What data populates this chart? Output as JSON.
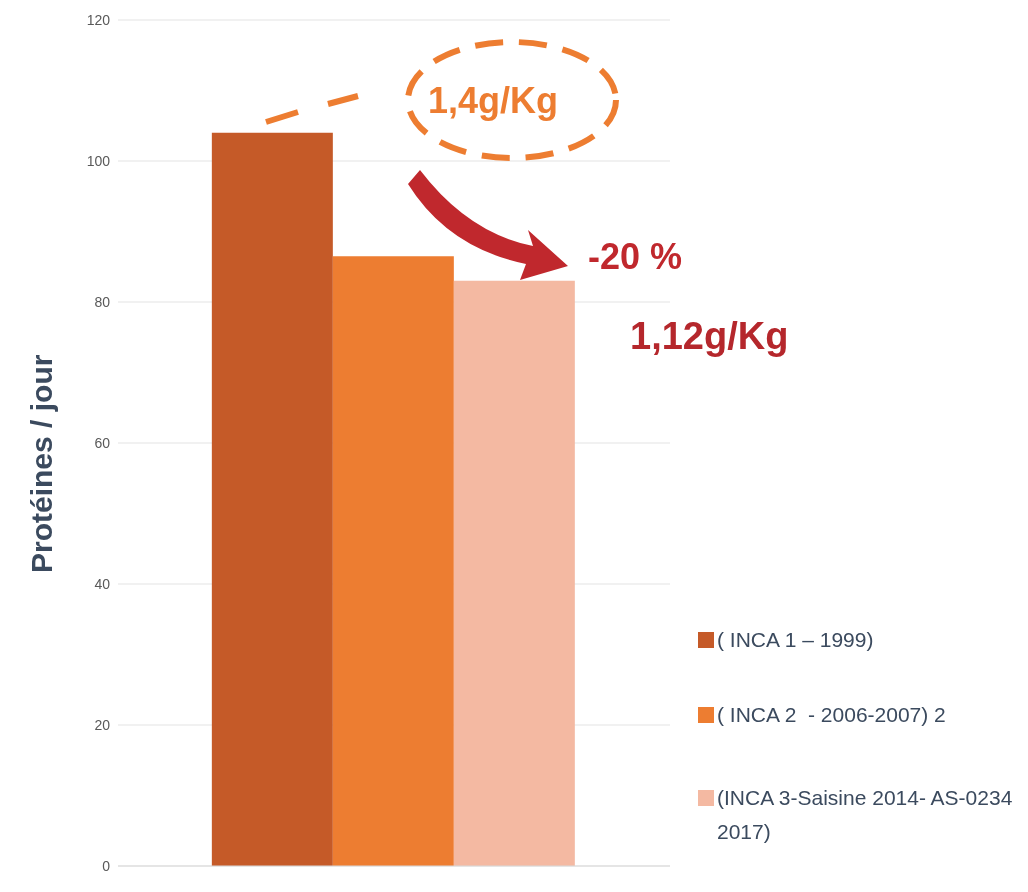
{
  "chart_data": {
    "type": "bar",
    "ylabel": "Protéines / jour",
    "categories": [
      null
    ],
    "series": [
      {
        "name": "( INCA 1 – 1999)",
        "color": "#c55a28",
        "values": [
          104
        ]
      },
      {
        "name": "( INCA 2  - 2006-2007) 2",
        "color": "#ed7d31",
        "values": [
          86.5
        ]
      },
      {
        "name": "(INCA 3-Saisine 2014- AS-0234 2017)",
        "color": "#f4b9a2",
        "values": [
          83
        ]
      }
    ],
    "ylim": [
      0,
      120
    ],
    "yticks": [
      0,
      20,
      40,
      60,
      80,
      100,
      120
    ],
    "grid": "y",
    "legend": "right",
    "annotations": [
      "1,4g/Kg",
      "-20 %",
      "1,12g/Kg"
    ]
  }
}
